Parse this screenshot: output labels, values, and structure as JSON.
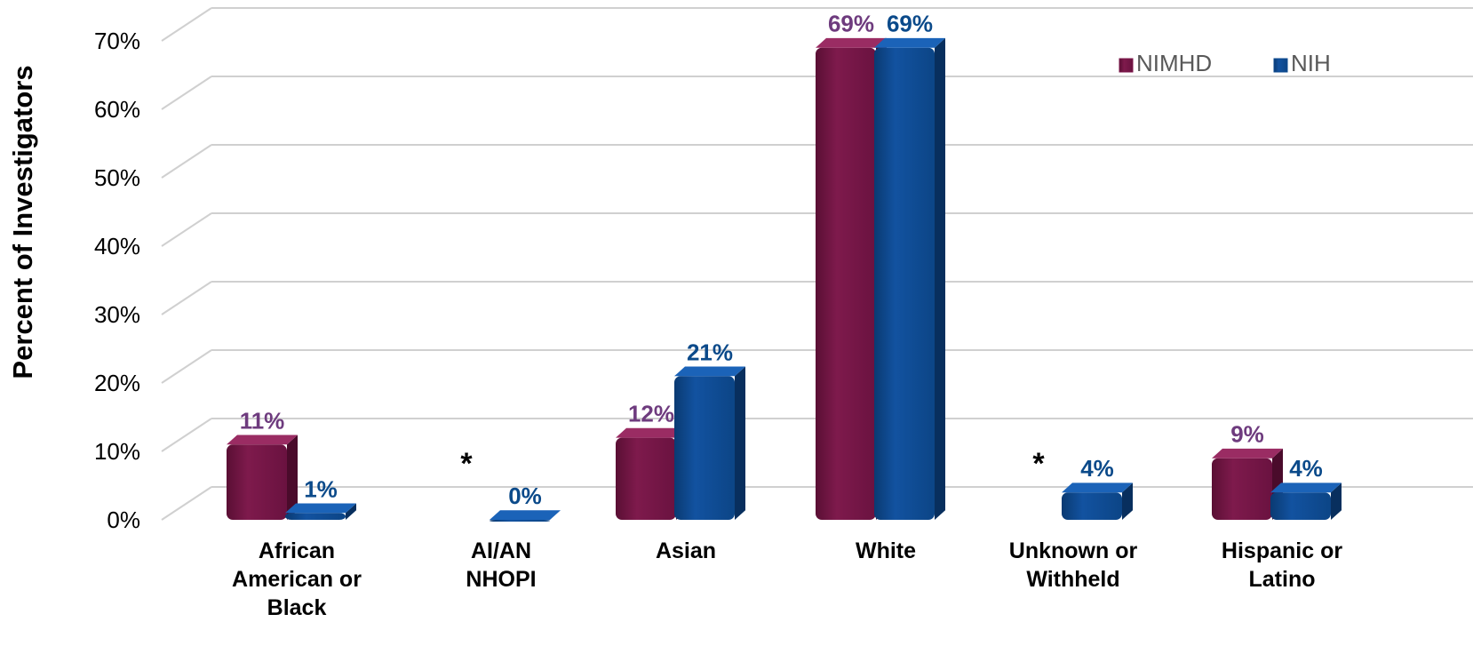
{
  "chart_data": {
    "type": "bar",
    "ylabel": "Percent of Investigators",
    "ylim": [
      0,
      70
    ],
    "yticks": [
      "0%",
      "10%",
      "20%",
      "30%",
      "40%",
      "50%",
      "60%",
      "70%"
    ],
    "categories": [
      [
        "African",
        "American or",
        "Black"
      ],
      [
        "AI/AN",
        "NHOPI"
      ],
      [
        "Asian"
      ],
      [
        "White"
      ],
      [
        "Unknown or",
        "Withheld"
      ],
      [
        "Hispanic or",
        "Latino"
      ]
    ],
    "series": [
      {
        "name": "NIMHD",
        "color": "#7b1548",
        "label_color": "#6e3b7e",
        "values": [
          11,
          null,
          12,
          69,
          null,
          9
        ],
        "labels": [
          "11%",
          "*",
          "12%",
          "69%",
          "*",
          "9%"
        ]
      },
      {
        "name": "NIH",
        "color": "#0d4a8f",
        "label_color": "#0b4a8a",
        "values": [
          1,
          0,
          21,
          69,
          4,
          4
        ],
        "labels": [
          "1%",
          "0%",
          "21%",
          "69%",
          "4%",
          "4%"
        ]
      }
    ],
    "legend_position": "top-right",
    "grid": true,
    "style": "3d"
  }
}
